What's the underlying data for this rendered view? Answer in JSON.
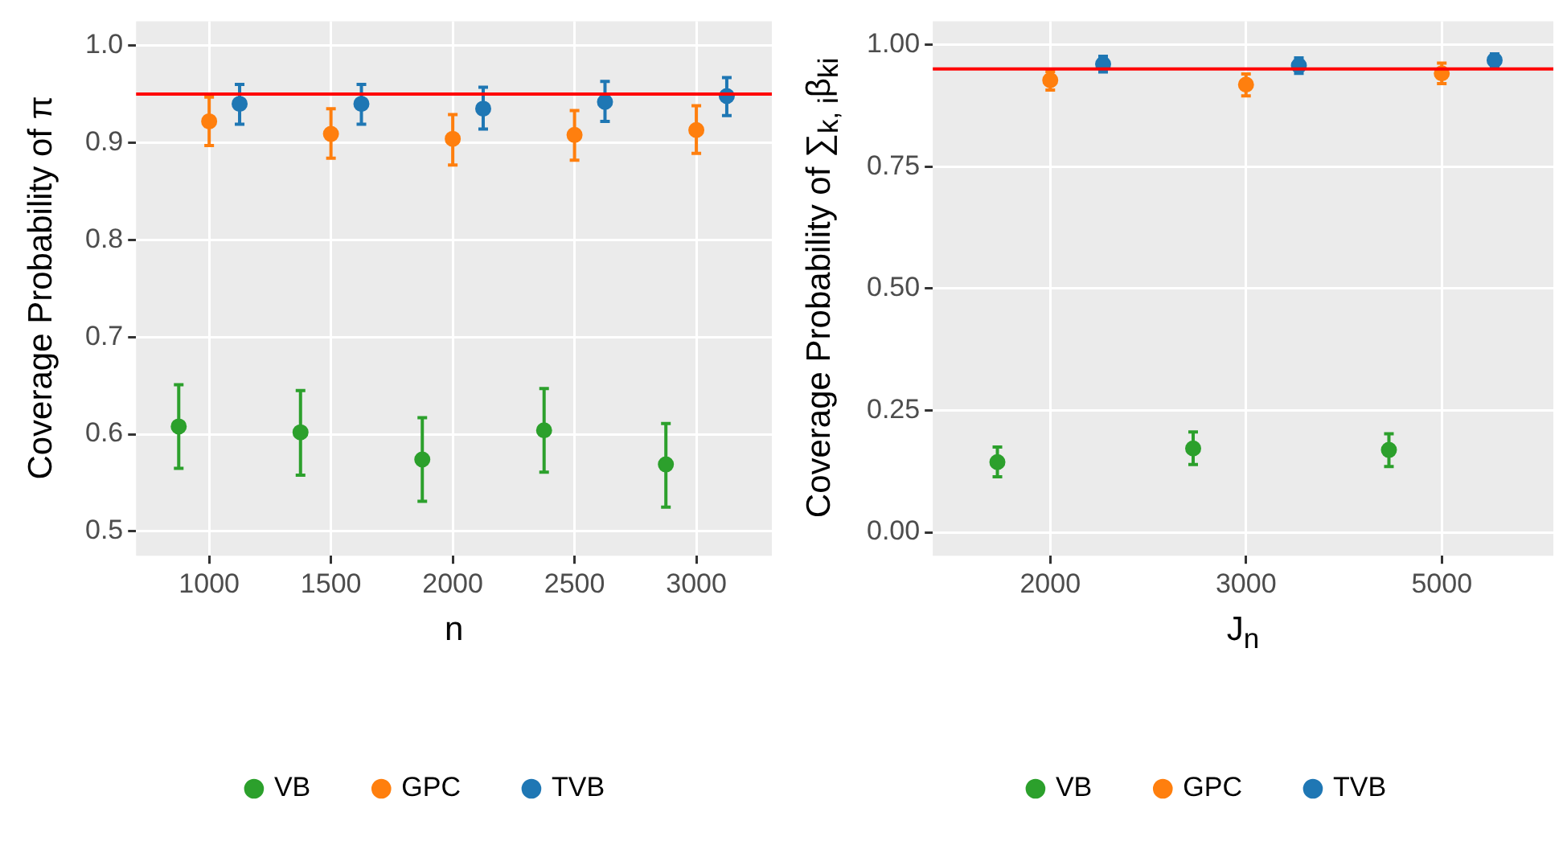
{
  "chart_data": [
    {
      "type": "scatter",
      "xlabel": "n",
      "ylabel": "Coverage Probability of π",
      "xlim": [
        700,
        3310
      ],
      "xticks": [
        1000,
        1500,
        2000,
        2500,
        3000
      ],
      "ylim": [
        0.475,
        1.025
      ],
      "yticks": [
        0.5,
        0.6,
        0.7,
        0.8,
        0.9,
        {
          "value": 1,
          "label": "1.0"
        }
      ],
      "grid": true,
      "legend": "bottom",
      "marker": "circle",
      "ref_lines": [
        {
          "axis": "y",
          "value": 0.95,
          "color": "#ff0000"
        }
      ],
      "series": [
        {
          "name": "VB",
          "color": "#2ca02c",
          "x": [
            875,
            1375,
            1875,
            2375,
            2875
          ],
          "values": [
            0.608,
            0.602,
            0.574,
            0.604,
            0.569
          ],
          "errors": [
            [
              0.565,
              0.651
            ],
            [
              0.558,
              0.645
            ],
            [
              0.531,
              0.617
            ],
            [
              0.561,
              0.647
            ],
            [
              0.525,
              0.611
            ]
          ]
        },
        {
          "name": "GPC",
          "color": "#ff7f0e",
          "x": [
            1000,
            1500,
            2000,
            2500,
            3000
          ],
          "values": [
            0.922,
            0.909,
            0.904,
            0.908,
            0.913
          ],
          "errors": [
            [
              0.897,
              0.947
            ],
            [
              0.884,
              0.935
            ],
            [
              0.877,
              0.929
            ],
            [
              0.882,
              0.933
            ],
            [
              0.889,
              0.938
            ]
          ]
        },
        {
          "name": "TVB",
          "color": "#1f77b4",
          "x": [
            1125,
            1625,
            2125,
            2625,
            3125
          ],
          "values": [
            0.94,
            0.94,
            0.935,
            0.942,
            0.948
          ],
          "errors": [
            [
              0.919,
              0.96
            ],
            [
              0.919,
              0.96
            ],
            [
              0.914,
              0.957
            ],
            [
              0.922,
              0.963
            ],
            [
              0.928,
              0.967
            ]
          ]
        }
      ]
    },
    {
      "type": "scatter",
      "xlabel": "J$_{n}$",
      "ylabel": "Coverage Probability of ∑$_{k, i}$β$_{ki}$",
      "categories": [
        "2000",
        "3000",
        "5000"
      ],
      "ylim": [
        -0.048,
        1.048
      ],
      "yticks": [
        {
          "value": 0,
          "label": "0.00"
        },
        0.25,
        {
          "value": 0.5,
          "label": "0.50"
        },
        0.75,
        {
          "value": 1,
          "label": "1.00"
        }
      ],
      "grid": true,
      "legend": "bottom",
      "marker": "circle",
      "ref_lines": [
        {
          "axis": "y",
          "value": 0.95,
          "color": "#ff0000"
        }
      ],
      "series": [
        {
          "name": "VB",
          "color": "#2ca02c",
          "values": [
            0.144,
            0.172,
            0.169
          ],
          "errors": [
            [
              0.114,
              0.175
            ],
            [
              0.139,
              0.206
            ],
            [
              0.135,
              0.202
            ]
          ]
        },
        {
          "name": "GPC",
          "color": "#ff7f0e",
          "values": [
            0.927,
            0.918,
            0.941
          ],
          "errors": [
            [
              0.907,
              0.945
            ],
            [
              0.895,
              0.94
            ],
            [
              0.92,
              0.962
            ]
          ]
        },
        {
          "name": "TVB",
          "color": "#1f77b4",
          "values": [
            0.96,
            0.957,
            0.968
          ],
          "errors": [
            [
              0.944,
              0.976
            ],
            [
              0.941,
              0.973
            ],
            [
              0.955,
              0.981
            ]
          ]
        }
      ]
    }
  ]
}
